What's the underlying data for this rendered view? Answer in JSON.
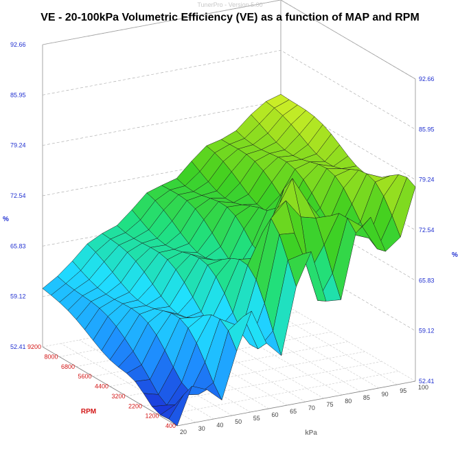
{
  "watermark": "TunerPro - Version 5.00",
  "chart_data": {
    "type": "surface3d",
    "title": "VE - 20-100kPa Volumetric Efficiency (VE) as a function of MAP and RPM",
    "xlabel": "kPa",
    "ylabel": "RPM",
    "zlabel": "%",
    "x_ticks": [
      "20",
      "30",
      "40",
      "50",
      "55",
      "60",
      "65",
      "70",
      "75",
      "80",
      "85",
      "90",
      "95",
      "100"
    ],
    "y_ticks": [
      "400",
      "1200",
      "2200",
      "3200",
      "4400",
      "5600",
      "6800",
      "8000",
      "9200"
    ],
    "z_ticks": [
      "52.41",
      "59.12",
      "65.83",
      "72.54",
      "79.24",
      "85.95",
      "92.66"
    ],
    "z_range": [
      52.41,
      92.66
    ],
    "colormap": [
      "#1a2fd6",
      "#1e90ff",
      "#20e0ff",
      "#20e080",
      "#40d020",
      "#a0e020",
      "#ffff30",
      "#ffc020",
      "#ff8010"
    ]
  }
}
